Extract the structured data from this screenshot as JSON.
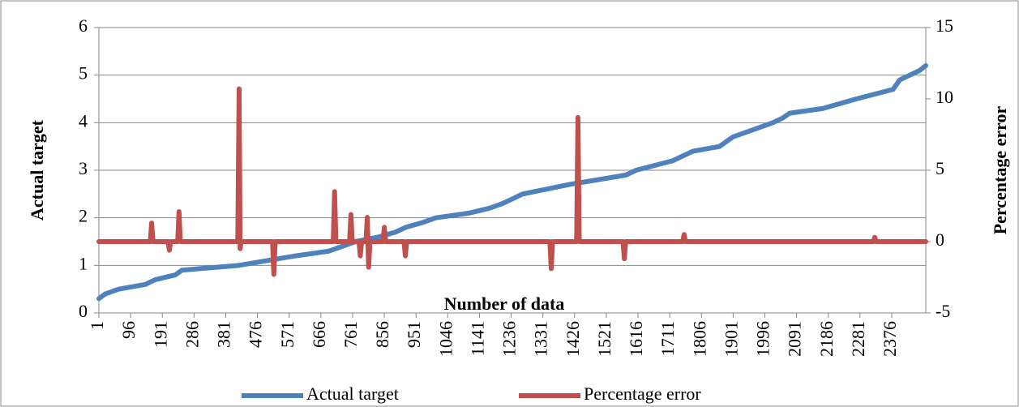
{
  "chart_data": {
    "type": "line",
    "xlabel": "Number of data",
    "ylabel": "Actual target",
    "y2label": "Percentage error",
    "xlim": [
      1,
      2478
    ],
    "xticks": [
      1,
      96,
      191,
      286,
      381,
      476,
      571,
      666,
      761,
      856,
      951,
      1046,
      1141,
      1236,
      1331,
      1426,
      1521,
      1616,
      1711,
      1806,
      1901,
      1996,
      2091,
      2186,
      2281,
      2376
    ],
    "ylim": [
      0,
      6
    ],
    "yticks": [
      0,
      1,
      2,
      3,
      4,
      5,
      6
    ],
    "y2lim": [
      -5,
      15
    ],
    "y2ticks": [
      -5,
      0,
      5,
      10,
      15
    ],
    "grid": true,
    "legend": "bottom",
    "series": [
      {
        "name": "Actual target",
        "color": "#4f81bd",
        "x": [
          1,
          20,
          60,
          140,
          170,
          230,
          250,
          420,
          590,
          690,
          770,
          840,
          890,
          920,
          970,
          1010,
          1110,
          1170,
          1210,
          1270,
          1340,
          1410,
          1580,
          1610,
          1720,
          1780,
          1860,
          1900,
          1940,
          2020,
          2050,
          2070,
          2170,
          2220,
          2270,
          2380,
          2400,
          2430,
          2460,
          2478
        ],
        "values": [
          0.3,
          0.4,
          0.5,
          0.6,
          0.7,
          0.8,
          0.9,
          1.0,
          1.2,
          1.3,
          1.5,
          1.6,
          1.7,
          1.8,
          1.9,
          2.0,
          2.1,
          2.2,
          2.3,
          2.5,
          2.6,
          2.7,
          2.9,
          3.0,
          3.2,
          3.4,
          3.5,
          3.7,
          3.8,
          4.0,
          4.1,
          4.2,
          4.3,
          4.4,
          4.5,
          4.7,
          4.9,
          5.0,
          5.1,
          5.2
        ]
      },
      {
        "name": "Percentage error",
        "color": "#c0504d",
        "axis": "y2",
        "x": [
          1,
          155,
          159,
          163,
          208,
          212,
          216,
          237,
          241,
          245,
          417,
          421,
          424,
          427,
          521,
          525,
          529,
          703,
          707,
          711,
          752,
          756,
          760,
          780,
          784,
          788,
          801,
          805,
          809,
          813,
          852,
          856,
          860,
          915,
          919,
          923,
          1352,
          1356,
          1360,
          1432,
          1436,
          1440,
          1571,
          1575,
          1579,
          1750,
          1754,
          1758,
          2321,
          2325,
          2329,
          2478
        ],
        "values": [
          0,
          0,
          1.3,
          0,
          0,
          -0.6,
          0,
          0,
          2.1,
          0,
          0,
          10.7,
          -0.5,
          0,
          0,
          -2.3,
          0,
          0,
          3.5,
          0,
          0,
          1.9,
          0,
          0,
          -1.0,
          0,
          0,
          1.7,
          -1.8,
          0,
          0,
          1.0,
          0,
          0,
          -1.0,
          0,
          0,
          -1.9,
          0,
          0,
          8.7,
          0,
          0,
          -1.2,
          0,
          0,
          0.5,
          0,
          0,
          0.3,
          0,
          0
        ]
      }
    ]
  }
}
